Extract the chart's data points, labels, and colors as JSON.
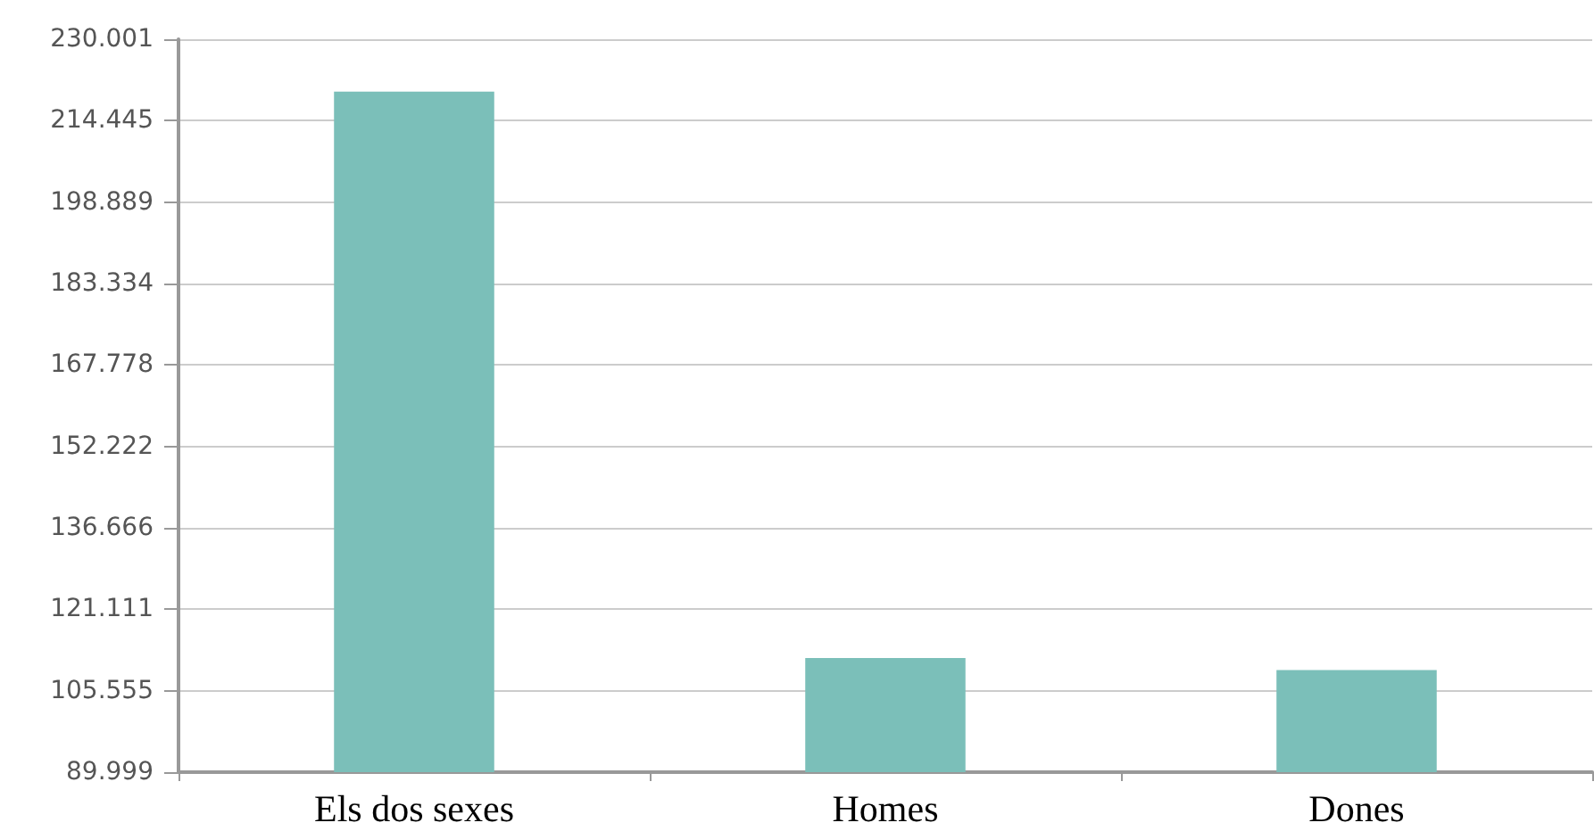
{
  "chart_data": {
    "type": "bar",
    "categories": [
      "Els dos sexes",
      "Homes",
      "Dones"
    ],
    "values": [
      220000,
      111800,
      109500
    ],
    "color": "#7bbfb9",
    "ylim": [
      89999,
      230001
    ],
    "yticks": [
      {
        "value": 89999,
        "label": "89.999"
      },
      {
        "value": 105555,
        "label": "105.555"
      },
      {
        "value": 121111,
        "label": "121.111"
      },
      {
        "value": 136666,
        "label": "136.666"
      },
      {
        "value": 152222,
        "label": "152.222"
      },
      {
        "value": 167778,
        "label": "167.778"
      },
      {
        "value": 183334,
        "label": "183.334"
      },
      {
        "value": 198889,
        "label": "198.889"
      },
      {
        "value": 214445,
        "label": "214.445"
      },
      {
        "value": 230001,
        "label": "230.001"
      }
    ],
    "grid": "y"
  }
}
